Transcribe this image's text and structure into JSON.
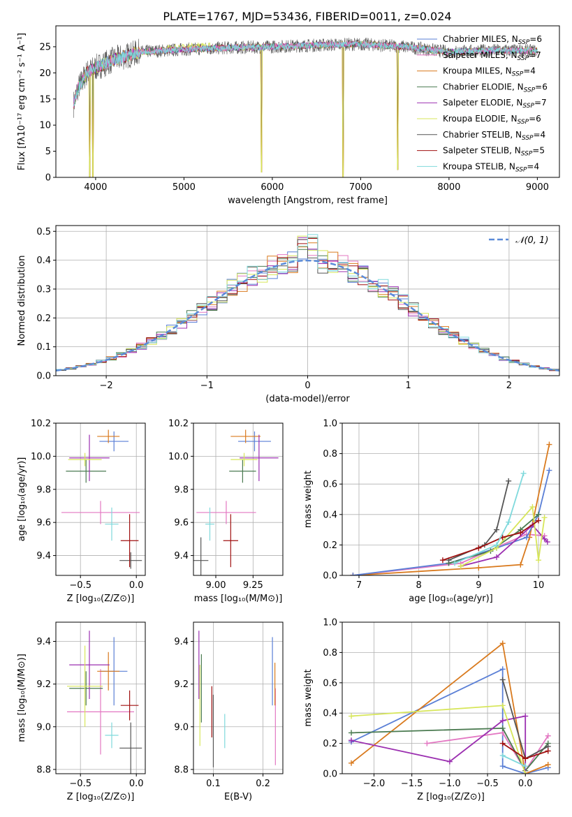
{
  "figure": {
    "title": "PLATE=1767, MJD=53436, FIBERID=0011, z=0.024"
  },
  "chart_data": [
    {
      "id": "spectrum",
      "type": "line",
      "title": "PLATE=1767, MJD=53436, FIBERID=0011, z=0.024",
      "xlabel": "wavelength [Angstrom, rest frame]",
      "ylabel": "Flux [fλ10⁻¹⁷ erg cm⁻² s⁻¹ A⁻¹]",
      "xlim": [
        3550,
        9250
      ],
      "ylim": [
        0,
        29
      ],
      "xticks": [
        4000,
        5000,
        6000,
        7000,
        8000,
        9000
      ],
      "yticks": [
        0,
        5,
        10,
        15,
        20,
        25
      ],
      "grid": false,
      "legend": "upper right",
      "legend_entries": [
        {
          "name": "Chabrier MILES, N",
          "sub": "SSP",
          "n": "=6",
          "color": "#5a7fd6"
        },
        {
          "name": "Salpeter MILES, N",
          "sub": "SSP",
          "n": "=7",
          "color": "#e377c2"
        },
        {
          "name": "Kroupa MILES, N",
          "sub": "SSP",
          "n": "=4",
          "color": "#d97a1e"
        },
        {
          "name": "Chabrier ELODIE, N",
          "sub": "SSP",
          "n": "=6",
          "color": "#4a7a50"
        },
        {
          "name": "Salpeter ELODIE, N",
          "sub": "SSP",
          "n": "=7",
          "color": "#9b2fb0"
        },
        {
          "name": "Kroupa ELODIE, N",
          "sub": "SSP",
          "n": "=6",
          "color": "#d7e65a"
        },
        {
          "name": "Chabrier STELIB, N",
          "sub": "SSP",
          "n": "=4",
          "color": "#555555"
        },
        {
          "name": "Salpeter STELIB, N",
          "sub": "SSP",
          "n": "=5",
          "color": "#a01010"
        },
        {
          "name": "Kroupa STELIB, N",
          "sub": "SSP",
          "n": "=4",
          "color": "#7fd9dc"
        }
      ],
      "continuum": [
        [
          3750,
          14
        ],
        [
          3800,
          17
        ],
        [
          3900,
          20
        ],
        [
          4000,
          21
        ],
        [
          4200,
          22.5
        ],
        [
          4500,
          24
        ],
        [
          5000,
          24.5
        ],
        [
          5500,
          24.8
        ],
        [
          6000,
          25
        ],
        [
          6500,
          25.3
        ],
        [
          7000,
          25.5
        ],
        [
          7500,
          25
        ],
        [
          8000,
          24
        ],
        [
          8500,
          24.3
        ],
        [
          9000,
          24.2
        ]
      ],
      "dips": [
        [
          3934,
          0
        ],
        [
          3969,
          0
        ],
        [
          5876,
          1
        ],
        [
          6800,
          0
        ],
        [
          7420,
          1.5
        ]
      ]
    },
    {
      "id": "residuals",
      "type": "histogram",
      "xlabel": "(data-model)/error",
      "ylabel": "Normed distribution",
      "xlim": [
        -2.5,
        2.5
      ],
      "ylim": [
        0,
        0.52
      ],
      "xticks": [
        -2,
        -1,
        0,
        1,
        2
      ],
      "yticks": [
        0.0,
        0.1,
        0.2,
        0.3,
        0.4,
        0.5
      ],
      "grid": true,
      "legend": "upper right",
      "legend_label": "𝒩(0, 1)",
      "bin_width": 0.1,
      "series_colors": [
        "#5a7fd6",
        "#e377c2",
        "#d97a1e",
        "#4a7a50",
        "#9b2fb0",
        "#d7e65a",
        "#555555",
        "#a01010",
        "#7fd9dc"
      ],
      "normal_color": "#5b8bd8"
    },
    {
      "id": "age-vs-z",
      "type": "errorbar",
      "xlabel": "Z [log₁₀(Z/Z⊙)]",
      "ylabel": "age  [log₁₀(age/yr)]",
      "xlim": [
        -0.72,
        0.08
      ],
      "ylim": [
        9.28,
        10.2
      ],
      "xticks": [
        -0.5,
        0.0
      ],
      "yticks": [
        9.4,
        9.6,
        9.8,
        10.0,
        10.2
      ],
      "grid": true,
      "points": [
        {
          "x": -0.2,
          "xe": 0.13,
          "y": 10.09,
          "ye": 0.06,
          "c": "#5a7fd6"
        },
        {
          "x": -0.32,
          "xe": 0.35,
          "y": 9.66,
          "ye": 0.07,
          "c": "#e377c2"
        },
        {
          "x": -0.25,
          "xe": 0.1,
          "y": 10.12,
          "ye": 0.04,
          "c": "#d97a1e"
        },
        {
          "x": -0.45,
          "xe": 0.18,
          "y": 9.91,
          "ye": 0.07,
          "c": "#4a7a50"
        },
        {
          "x": -0.42,
          "xe": 0.18,
          "y": 9.99,
          "ye": 0.14,
          "c": "#9b2fb0"
        },
        {
          "x": -0.46,
          "xe": 0.15,
          "y": 9.98,
          "ye": 0.04,
          "c": "#d7e65a"
        },
        {
          "x": -0.05,
          "xe": 0.1,
          "y": 9.37,
          "ye": 0.05,
          "c": "#555555"
        },
        {
          "x": -0.06,
          "xe": 0.08,
          "y": 9.49,
          "ye": 0.16,
          "c": "#a01010"
        },
        {
          "x": -0.22,
          "xe": 0.06,
          "y": 9.59,
          "ye": 0.1,
          "c": "#7fd9dc"
        }
      ]
    },
    {
      "id": "age-vs-mass",
      "type": "errorbar",
      "xlabel": "mass [log₁₀(M/M⊙)]",
      "ylabel": "",
      "xlim": [
        8.85,
        9.45
      ],
      "ylim": [
        9.28,
        10.2
      ],
      "xticks": [
        9.0,
        9.25
      ],
      "yticks": [
        9.4,
        9.6,
        9.8,
        10.0,
        10.2
      ],
      "grid": true,
      "points": [
        {
          "x": 9.26,
          "xe": 0.11,
          "y": 10.09,
          "ye": 0.06,
          "c": "#5a7fd6"
        },
        {
          "x": 9.07,
          "xe": 0.2,
          "y": 9.66,
          "ye": 0.07,
          "c": "#e377c2"
        },
        {
          "x": 9.2,
          "xe": 0.1,
          "y": 10.12,
          "ye": 0.04,
          "c": "#d97a1e"
        },
        {
          "x": 9.18,
          "xe": 0.09,
          "y": 9.91,
          "ye": 0.07,
          "c": "#4a7a50"
        },
        {
          "x": 9.29,
          "xe": 0.13,
          "y": 9.99,
          "ye": 0.14,
          "c": "#9b2fb0"
        },
        {
          "x": 9.19,
          "xe": 0.09,
          "y": 9.98,
          "ye": 0.04,
          "c": "#d7e65a"
        },
        {
          "x": 8.9,
          "xe": 0.05,
          "y": 9.37,
          "ye": 0.14,
          "c": "#555555"
        },
        {
          "x": 9.1,
          "xe": 0.05,
          "y": 9.49,
          "ye": 0.16,
          "c": "#a01010"
        },
        {
          "x": 8.96,
          "xe": 0.03,
          "y": 9.59,
          "ye": 0.1,
          "c": "#7fd9dc"
        }
      ]
    },
    {
      "id": "weight-vs-age",
      "type": "line",
      "xlabel": "age  [log₁₀(age/yr)]",
      "ylabel": "mass weight",
      "xlim": [
        6.72,
        10.35
      ],
      "ylim": [
        0,
        1
      ],
      "xticks": [
        7,
        8,
        9,
        10
      ],
      "yticks": [
        0.0,
        0.2,
        0.4,
        0.6,
        0.8,
        1.0
      ],
      "grid": true,
      "series": [
        {
          "c": "#e377c2",
          "pts": [
            [
              6.9,
              0.0
            ],
            [
              8.7,
              0.08
            ],
            [
              9.8,
              0.27
            ],
            [
              10.1,
              0.26
            ]
          ]
        },
        {
          "c": "#d97a1e",
          "pts": [
            [
              6.9,
              0.0
            ],
            [
              9.0,
              0.05
            ],
            [
              9.7,
              0.07
            ],
            [
              9.85,
              0.25
            ],
            [
              10.18,
              0.86
            ]
          ]
        },
        {
          "c": "#5a7fd6",
          "pts": [
            [
              6.9,
              0.0
            ],
            [
              8.5,
              0.08
            ],
            [
              9.3,
              0.18
            ],
            [
              9.8,
              0.25
            ],
            [
              10.0,
              0.4
            ],
            [
              10.18,
              0.69
            ]
          ]
        },
        {
          "c": "#4a7a50",
          "pts": [
            [
              8.5,
              0.08
            ],
            [
              9.2,
              0.16
            ],
            [
              9.7,
              0.3
            ],
            [
              10.0,
              0.4
            ]
          ]
        },
        {
          "c": "#9b2fb0",
          "pts": [
            [
              8.7,
              0.06
            ],
            [
              9.3,
              0.12
            ],
            [
              9.9,
              0.33
            ],
            [
              10.1,
              0.24
            ],
            [
              10.15,
              0.22
            ]
          ]
        },
        {
          "c": "#d7e65a",
          "pts": [
            [
              8.7,
              0.06
            ],
            [
              9.3,
              0.18
            ],
            [
              9.9,
              0.45
            ],
            [
              10.0,
              0.1
            ],
            [
              10.1,
              0.38
            ]
          ]
        },
        {
          "c": "#555555",
          "pts": [
            [
              8.5,
              0.1
            ],
            [
              9.1,
              0.2
            ],
            [
              9.3,
              0.3
            ],
            [
              9.5,
              0.62
            ]
          ]
        },
        {
          "c": "#a01010",
          "pts": [
            [
              8.4,
              0.1
            ],
            [
              9.0,
              0.18
            ],
            [
              9.4,
              0.25
            ],
            [
              9.7,
              0.28
            ],
            [
              10.0,
              0.36
            ]
          ]
        },
        {
          "c": "#7fd9dc",
          "pts": [
            [
              8.6,
              0.08
            ],
            [
              9.3,
              0.2
            ],
            [
              9.5,
              0.35
            ],
            [
              9.75,
              0.67
            ]
          ]
        }
      ]
    },
    {
      "id": "mass-vs-z",
      "type": "errorbar",
      "xlabel": "Z [log₁₀(Z/Z⊙)]",
      "ylabel": "mass [log₁₀(M/M⊙)]",
      "xlim": [
        -0.72,
        0.08
      ],
      "ylim": [
        8.78,
        9.49
      ],
      "xticks": [
        -0.5,
        0.0
      ],
      "yticks": [
        8.8,
        9.0,
        9.2,
        9.4
      ],
      "grid": true,
      "points": [
        {
          "x": -0.2,
          "xe": 0.12,
          "y": 9.26,
          "ye": 0.16,
          "c": "#5a7fd6"
        },
        {
          "x": -0.32,
          "xe": 0.3,
          "y": 9.07,
          "ye": 0.2,
          "c": "#e377c2"
        },
        {
          "x": -0.25,
          "xe": 0.1,
          "y": 9.26,
          "ye": 0.09,
          "c": "#d97a1e"
        },
        {
          "x": -0.45,
          "xe": 0.15,
          "y": 9.18,
          "ye": 0.08,
          "c": "#4a7a50"
        },
        {
          "x": -0.42,
          "xe": 0.18,
          "y": 9.29,
          "ye": 0.16,
          "c": "#9b2fb0"
        },
        {
          "x": -0.46,
          "xe": 0.16,
          "y": 9.19,
          "ye": 0.19,
          "c": "#d7e65a"
        },
        {
          "x": -0.05,
          "xe": 0.1,
          "y": 8.9,
          "ye": 0.12,
          "c": "#555555"
        },
        {
          "x": -0.06,
          "xe": 0.08,
          "y": 9.1,
          "ye": 0.07,
          "c": "#a01010"
        },
        {
          "x": -0.22,
          "xe": 0.06,
          "y": 8.96,
          "ye": 0.06,
          "c": "#7fd9dc"
        }
      ]
    },
    {
      "id": "mass-vs-ebv",
      "type": "errorbar",
      "xlabel": "E(B-V)",
      "ylabel": "",
      "xlim": [
        0.06,
        0.24
      ],
      "ylim": [
        8.78,
        9.49
      ],
      "xticks": [
        0.1,
        0.2
      ],
      "yticks": [
        8.8,
        9.0,
        9.2,
        9.4
      ],
      "grid": true,
      "points": [
        {
          "x": 0.219,
          "xe": 0.0,
          "y": 9.26,
          "ye": 0.16,
          "c": "#5a7fd6"
        },
        {
          "x": 0.225,
          "xe": 0.0,
          "y": 9.0,
          "ye": 0.18,
          "c": "#e377c2"
        },
        {
          "x": 0.224,
          "xe": 0.0,
          "y": 9.2,
          "ye": 0.1,
          "c": "#d97a1e"
        },
        {
          "x": 0.076,
          "xe": 0.0,
          "y": 9.18,
          "ye": 0.16,
          "c": "#4a7a50"
        },
        {
          "x": 0.071,
          "xe": 0.0,
          "y": 9.29,
          "ye": 0.16,
          "c": "#9b2fb0"
        },
        {
          "x": 0.073,
          "xe": 0.0,
          "y": 9.1,
          "ye": 0.19,
          "c": "#d7e65a"
        },
        {
          "x": 0.1,
          "xe": 0.0,
          "y": 8.98,
          "ye": 0.17,
          "c": "#555555"
        },
        {
          "x": 0.097,
          "xe": 0.0,
          "y": 9.07,
          "ye": 0.12,
          "c": "#a01010"
        },
        {
          "x": 0.123,
          "xe": 0.0,
          "y": 8.98,
          "ye": 0.08,
          "c": "#7fd9dc"
        }
      ]
    },
    {
      "id": "weight-vs-z",
      "type": "line",
      "xlabel": "Z [log₁₀(Z/Z⊙)]",
      "ylabel": "mass weight",
      "xlim": [
        -2.42,
        0.45
      ],
      "ylim": [
        0,
        1
      ],
      "xticks": [
        -2.0,
        -1.5,
        -1.0,
        -0.5,
        0.0
      ],
      "yticks": [
        0.0,
        0.2,
        0.4,
        0.6,
        0.8,
        1.0
      ],
      "grid": true,
      "series": [
        {
          "c": "#5a7fd6",
          "pts": [
            [
              -2.3,
              0.21
            ],
            [
              -0.3,
              0.69
            ],
            [
              -0.3,
              0.05
            ],
            [
              0.0,
              0.0
            ],
            [
              0.3,
              0.04
            ]
          ]
        },
        {
          "c": "#e377c2",
          "pts": [
            [
              -1.3,
              0.2
            ],
            [
              -0.3,
              0.27
            ],
            [
              0.0,
              0.02
            ],
            [
              0.3,
              0.25
            ]
          ]
        },
        {
          "c": "#d97a1e",
          "pts": [
            [
              -2.3,
              0.07
            ],
            [
              -0.3,
              0.86
            ],
            [
              0.0,
              0.0
            ],
            [
              0.3,
              0.06
            ]
          ]
        },
        {
          "c": "#4a7a50",
          "pts": [
            [
              -2.3,
              0.27
            ],
            [
              -0.3,
              0.3
            ],
            [
              0.0,
              0.02
            ],
            [
              0.3,
              0.2
            ]
          ]
        },
        {
          "c": "#9b2fb0",
          "pts": [
            [
              -2.3,
              0.22
            ],
            [
              -1.0,
              0.08
            ],
            [
              -0.3,
              0.35
            ],
            [
              0.0,
              0.38
            ],
            [
              0.0,
              0.0
            ]
          ]
        },
        {
          "c": "#d7e65a",
          "pts": [
            [
              -2.3,
              0.38
            ],
            [
              -0.3,
              0.45
            ],
            [
              0.0,
              0.0
            ]
          ]
        },
        {
          "c": "#555555",
          "pts": [
            [
              -0.3,
              0.62
            ],
            [
              0.0,
              0.1
            ],
            [
              0.3,
              0.18
            ]
          ]
        },
        {
          "c": "#a01010",
          "pts": [
            [
              -0.3,
              0.2
            ],
            [
              0.0,
              0.1
            ],
            [
              0.3,
              0.15
            ]
          ]
        },
        {
          "c": "#7fd9dc",
          "pts": [
            [
              -0.3,
              0.12
            ],
            [
              0.0,
              0.05
            ]
          ]
        }
      ]
    }
  ]
}
